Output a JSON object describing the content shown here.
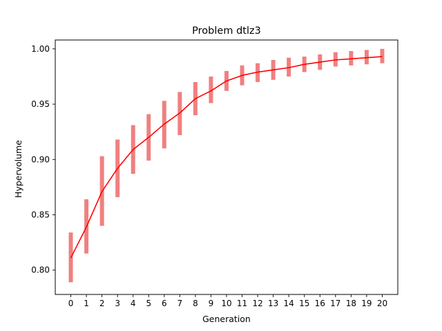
{
  "chart_data": {
    "type": "line",
    "title": "Problem dtlz3",
    "xlabel": "Generation",
    "ylabel": "Hypervolume",
    "x": [
      0,
      1,
      2,
      3,
      4,
      5,
      6,
      7,
      8,
      9,
      10,
      11,
      12,
      13,
      14,
      15,
      16,
      17,
      18,
      19,
      20
    ],
    "xlim": [
      -1,
      21
    ],
    "ylim": [
      0.778,
      1.008
    ],
    "yticks": [
      0.8,
      0.85,
      0.9,
      0.95,
      1.0
    ],
    "ytick_labels": [
      "0.80",
      "0.85",
      "0.90",
      "0.95",
      "1.00"
    ],
    "grid": false,
    "series": [
      {
        "values": [
          0.811,
          0.839,
          0.871,
          0.892,
          0.909,
          0.92,
          0.932,
          0.942,
          0.955,
          0.962,
          0.971,
          0.976,
          0.979,
          0.981,
          0.983,
          0.986,
          0.988,
          0.99,
          0.991,
          0.992,
          0.993
        ],
        "err_low": [
          0.789,
          0.815,
          0.84,
          0.866,
          0.887,
          0.899,
          0.91,
          0.922,
          0.94,
          0.951,
          0.962,
          0.967,
          0.97,
          0.972,
          0.975,
          0.979,
          0.981,
          0.984,
          0.985,
          0.986,
          0.987
        ],
        "err_high": [
          0.834,
          0.864,
          0.903,
          0.918,
          0.931,
          0.941,
          0.953,
          0.961,
          0.97,
          0.975,
          0.98,
          0.985,
          0.987,
          0.99,
          0.992,
          0.993,
          0.995,
          0.997,
          0.998,
          0.999,
          1.0
        ],
        "line_color": "#ff0000",
        "errorbar_color": "#f08080"
      }
    ]
  }
}
